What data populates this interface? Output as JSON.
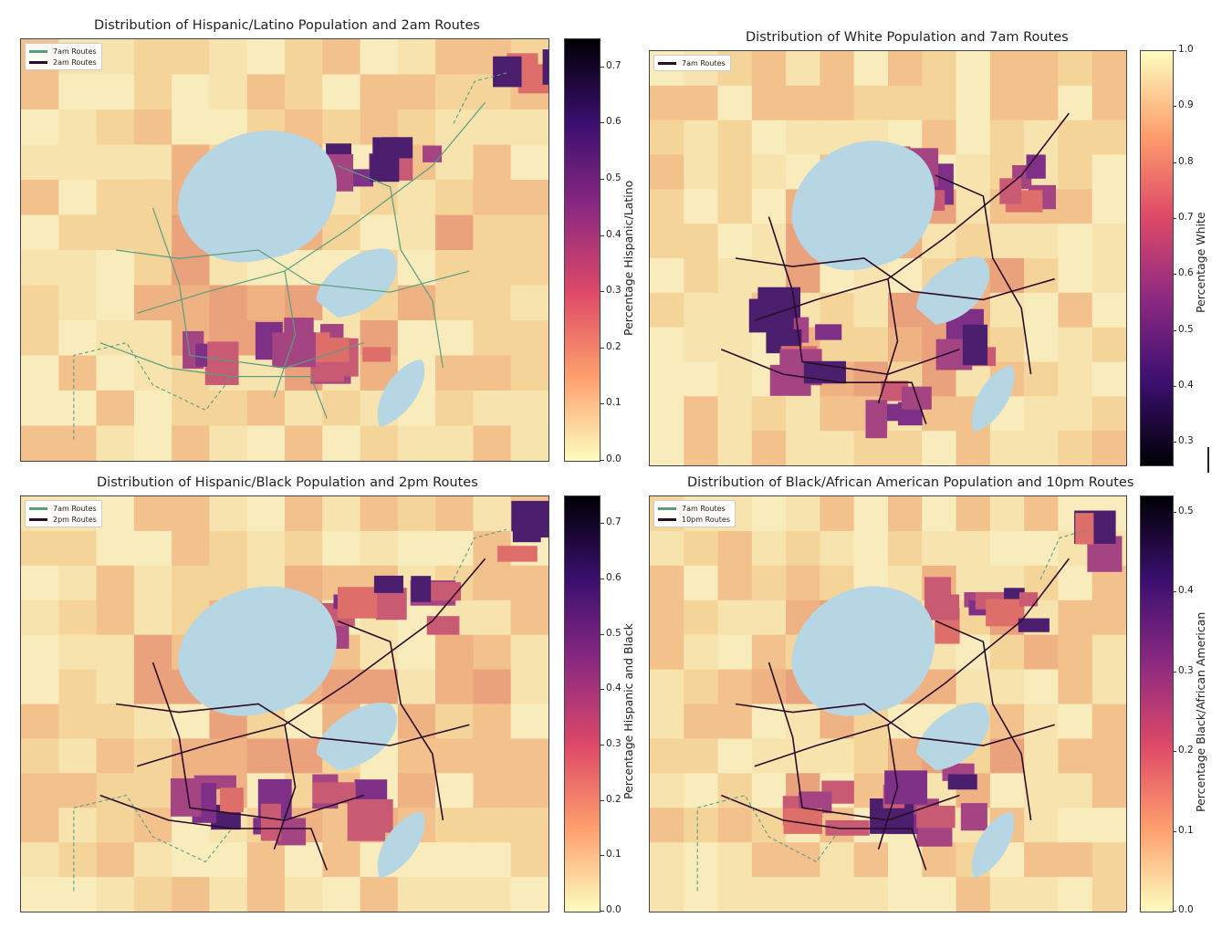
{
  "colors": {
    "land_low": "#f8ecbc",
    "lake": "#b7d6e3",
    "route_7am": "#5a9e80",
    "route_other": "#2a0d26"
  },
  "panels": [
    {
      "title": "Distribution of Hispanic/Latino Population and 2am Routes",
      "legend": [
        {
          "label": "7am Routes",
          "color": "#5a9e80"
        },
        {
          "label": "2am Routes",
          "color": "#2a0d26"
        }
      ],
      "colorbar_label": "Percentage Hispanic/Latino",
      "colorbar_ticks": [
        "0.0",
        "0.1",
        "0.2",
        "0.3",
        "0.4",
        "0.5",
        "0.6",
        "0.7"
      ],
      "colorbar_scale": "magma reversed"
    },
    {
      "title": "Distribution of White Population and 7am Routes",
      "legend": [
        {
          "label": "7am Routes",
          "color": "#2a0d26"
        }
      ],
      "colorbar_label": "Percentage White",
      "colorbar_ticks": [
        "0.3",
        "0.4",
        "0.5",
        "0.6",
        "0.7",
        "0.8",
        "0.9",
        "1.0"
      ],
      "colorbar_scale": "magma"
    },
    {
      "title": "Distribution of Hispanic/Black Population and 2pm Routes",
      "legend": [
        {
          "label": "7am Routes",
          "color": "#5a9e80"
        },
        {
          "label": "2pm Routes",
          "color": "#2a0d26"
        }
      ],
      "colorbar_label": "Percentage Hispanic and Black",
      "colorbar_ticks": [
        "0.0",
        "0.1",
        "0.2",
        "0.3",
        "0.4",
        "0.5",
        "0.6",
        "0.7"
      ],
      "colorbar_scale": "magma reversed"
    },
    {
      "title": "Distribution of Black/African American Population and 10pm Routes",
      "legend": [
        {
          "label": "7am Routes",
          "color": "#5a9e80"
        },
        {
          "label": "10pm Routes",
          "color": "#2a0d26"
        }
      ],
      "colorbar_label": "Percentage Black/African American",
      "colorbar_ticks": [
        "0.0",
        "0.1",
        "0.2",
        "0.3",
        "0.4",
        "0.5"
      ],
      "colorbar_scale": "magma reversed"
    }
  ]
}
